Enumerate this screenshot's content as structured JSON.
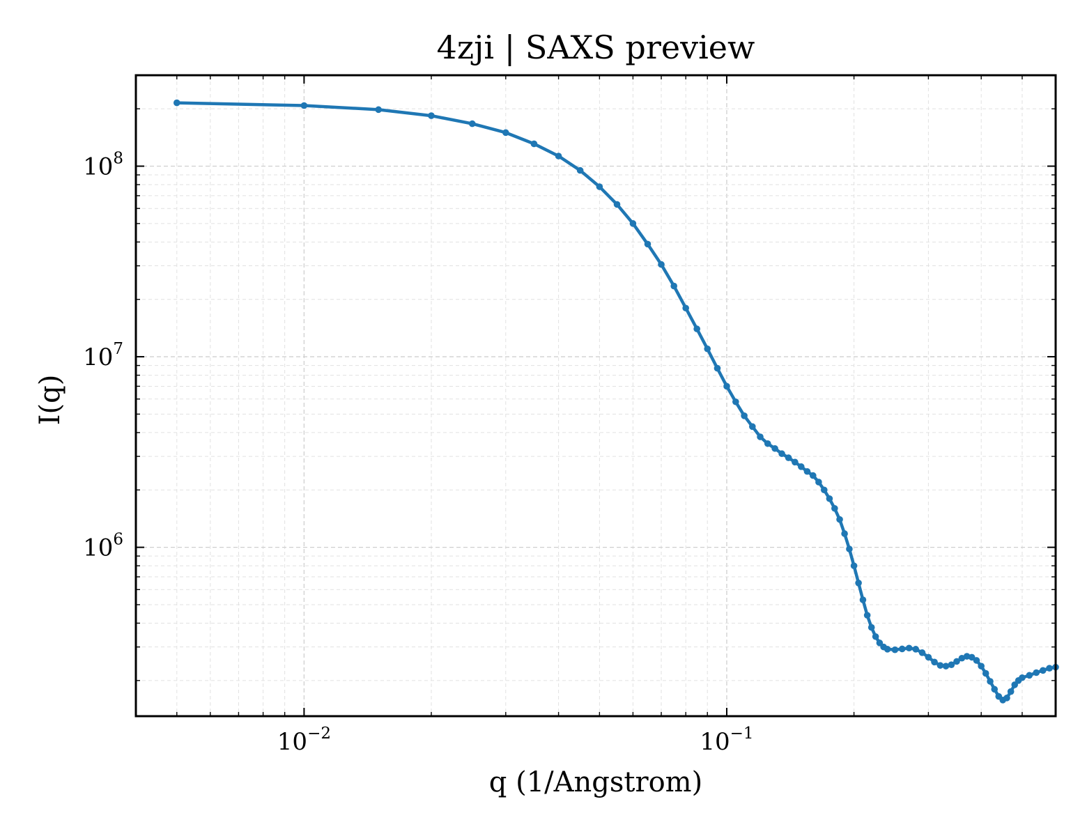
{
  "chart_data": {
    "type": "line",
    "title": "4zji | SAXS preview",
    "xlabel": "q (1/Angstrom)",
    "ylabel": "I(q)",
    "xscale": "log",
    "yscale": "log",
    "xlim": [
      0.004,
      0.6
    ],
    "ylim": [
      130000,
      300000000
    ],
    "grid": true,
    "legend": "none",
    "x_tick_labels": [
      {
        "value": 0.01,
        "base": "10",
        "exp": "−2"
      },
      {
        "value": 0.1,
        "base": "10",
        "exp": "−1"
      }
    ],
    "y_tick_labels": [
      {
        "value": 1000000,
        "base": "10",
        "exp": "6"
      },
      {
        "value": 10000000,
        "base": "10",
        "exp": "7"
      },
      {
        "value": 100000000,
        "base": "10",
        "exp": "8"
      }
    ],
    "series": [
      {
        "color": "#1f77b4",
        "marker": "circle",
        "points": [
          [
            0.005,
            215000000
          ],
          [
            0.01,
            208000000
          ],
          [
            0.015,
            198000000
          ],
          [
            0.02,
            184000000
          ],
          [
            0.025,
            167000000
          ],
          [
            0.03,
            150000000
          ],
          [
            0.035,
            131000000
          ],
          [
            0.04,
            113000000
          ],
          [
            0.045,
            95000000
          ],
          [
            0.05,
            78000000
          ],
          [
            0.055,
            63000000
          ],
          [
            0.06,
            50000000
          ],
          [
            0.065,
            39000000
          ],
          [
            0.07,
            30500000
          ],
          [
            0.075,
            23500000
          ],
          [
            0.08,
            18000000
          ],
          [
            0.085,
            14000000
          ],
          [
            0.09,
            11000000
          ],
          [
            0.095,
            8700000
          ],
          [
            0.1,
            7000000
          ],
          [
            0.105,
            5800000
          ],
          [
            0.11,
            4900000
          ],
          [
            0.115,
            4300000
          ],
          [
            0.12,
            3800000
          ],
          [
            0.125,
            3500000
          ],
          [
            0.13,
            3300000
          ],
          [
            0.135,
            3100000
          ],
          [
            0.14,
            2950000
          ],
          [
            0.145,
            2800000
          ],
          [
            0.15,
            2650000
          ],
          [
            0.155,
            2500000
          ],
          [
            0.16,
            2380000
          ],
          [
            0.165,
            2200000
          ],
          [
            0.17,
            2000000
          ],
          [
            0.175,
            1800000
          ],
          [
            0.18,
            1600000
          ],
          [
            0.185,
            1400000
          ],
          [
            0.19,
            1180000
          ],
          [
            0.195,
            980000
          ],
          [
            0.2,
            800000
          ],
          [
            0.205,
            650000
          ],
          [
            0.21,
            530000
          ],
          [
            0.215,
            440000
          ],
          [
            0.22,
            380000
          ],
          [
            0.225,
            340000
          ],
          [
            0.23,
            315000
          ],
          [
            0.235,
            300000
          ],
          [
            0.24,
            292000
          ],
          [
            0.25,
            290000
          ],
          [
            0.26,
            293000
          ],
          [
            0.27,
            296000
          ],
          [
            0.28,
            292000
          ],
          [
            0.29,
            280000
          ],
          [
            0.3,
            265000
          ],
          [
            0.31,
            250000
          ],
          [
            0.32,
            240000
          ],
          [
            0.33,
            238000
          ],
          [
            0.34,
            242000
          ],
          [
            0.35,
            252000
          ],
          [
            0.36,
            262000
          ],
          [
            0.37,
            268000
          ],
          [
            0.38,
            265000
          ],
          [
            0.39,
            255000
          ],
          [
            0.4,
            238000
          ],
          [
            0.41,
            218000
          ],
          [
            0.42,
            198000
          ],
          [
            0.43,
            180000
          ],
          [
            0.44,
            165000
          ],
          [
            0.45,
            158000
          ],
          [
            0.46,
            162000
          ],
          [
            0.47,
            175000
          ],
          [
            0.48,
            190000
          ],
          [
            0.49,
            200000
          ],
          [
            0.5,
            207000
          ],
          [
            0.52,
            213000
          ],
          [
            0.54,
            220000
          ],
          [
            0.56,
            226000
          ],
          [
            0.58,
            232000
          ],
          [
            0.6,
            235000
          ]
        ]
      }
    ]
  }
}
